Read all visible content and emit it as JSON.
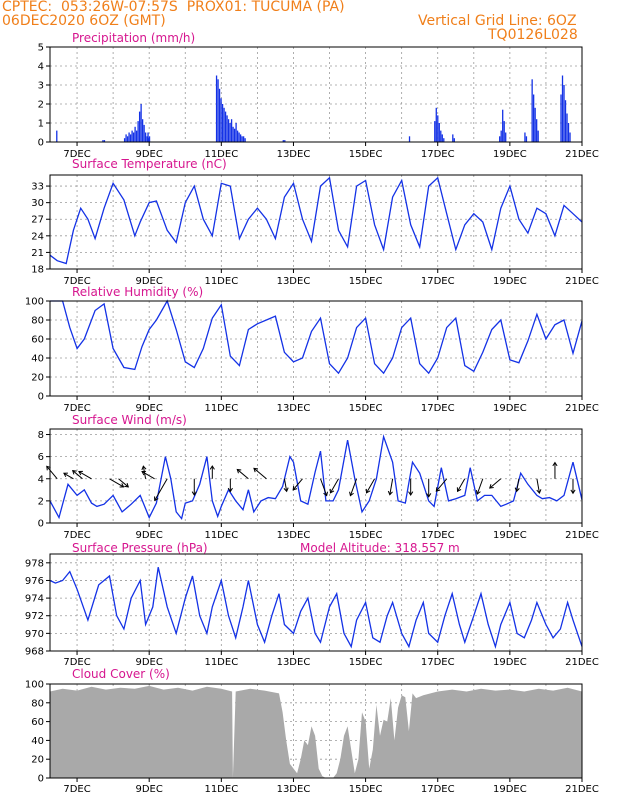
{
  "header": {
    "line1_left": "CPTEC:  053:26W-07:57S  PROX01: TUCUMA (PA)",
    "line2_left": "06DEC2020 6OZ (GMT)",
    "line2_right": "Vertical Grid Line: 6OZ",
    "line3_right": "TQ0126L028"
  },
  "colors": {
    "header": "#f07f1a",
    "title": "#d6168f",
    "series": "#1432e6",
    "cloud": "#a9a9a9",
    "grid": "#9a9a9a",
    "arrow": "#000000"
  },
  "chart_data": [
    {
      "type": "bar",
      "title": "Precipitation (mm/h)",
      "ylim": [
        0,
        5
      ],
      "yticks": [
        "0",
        "1",
        "2",
        "3",
        "4",
        "5"
      ],
      "x_start_day": 6.25,
      "x_end_day": 21.0,
      "x_tick_days": [
        7,
        9,
        11,
        13,
        15,
        17,
        19,
        21
      ],
      "x_tick_labels": [
        "7DEC",
        "9DEC",
        "11DEC",
        "13DEC",
        "15DEC",
        "17DEC",
        "19DEC",
        "21DEC"
      ],
      "bursts": [
        {
          "day": 6.42,
          "values": [
            0.6
          ]
        },
        {
          "day": 7.7,
          "values": [
            0.1,
            0.1
          ]
        },
        {
          "day": 8.3,
          "values": [
            0.2,
            0.4,
            0.3,
            0.5,
            0.4,
            0.6,
            0.5,
            0.8,
            0.6,
            1.1,
            1.6,
            2.0,
            1.2,
            0.9,
            0.5,
            0.3,
            0.2
          ]
        },
        {
          "day": 8.95,
          "values": [
            0.5,
            0.3
          ]
        },
        {
          "day": 10.85,
          "values": [
            3.5,
            3.3,
            2.8,
            2.3,
            2.0,
            1.8,
            1.6,
            1.4,
            1.2,
            1.0,
            1.2,
            0.8,
            0.7,
            1.0,
            0.6,
            0.5,
            0.4,
            0.3,
            0.3,
            0.2
          ]
        },
        {
          "day": 12.7,
          "values": [
            0.1,
            0.1
          ]
        },
        {
          "day": 16.2,
          "values": [
            0.3
          ]
        },
        {
          "day": 16.9,
          "values": [
            1.1,
            1.8,
            1.4,
            1.0,
            0.6,
            0.4,
            0.2
          ]
        },
        {
          "day": 17.4,
          "values": [
            0.4,
            0.2
          ]
        },
        {
          "day": 18.7,
          "values": [
            0.3,
            0.6,
            1.7,
            1.1,
            0.5
          ]
        },
        {
          "day": 19.4,
          "values": [
            0.5,
            0.3
          ]
        },
        {
          "day": 19.6,
          "values": [
            3.3,
            2.5,
            1.8,
            1.2,
            0.6
          ]
        },
        {
          "day": 20.4,
          "values": [
            2.5,
            3.5,
            3.0,
            2.2,
            1.5,
            1.0,
            0.5
          ]
        }
      ]
    },
    {
      "type": "line",
      "title": "Surface Temperature (nC)",
      "ylim": [
        18,
        35
      ],
      "yticks": [
        "18",
        "21",
        "24",
        "27",
        "30",
        "33"
      ],
      "ytick_values": [
        18,
        21,
        24,
        27,
        30,
        33
      ],
      "x_tick_days": [
        7,
        9,
        11,
        13,
        15,
        17,
        19,
        21
      ],
      "x_tick_labels": [
        "7DEC",
        "9DEC",
        "11DEC",
        "13DEC",
        "15DEC",
        "17DEC",
        "19DEC",
        "21DEC"
      ],
      "x": [
        6.25,
        6.45,
        6.7,
        6.9,
        7.1,
        7.3,
        7.5,
        7.75,
        8.0,
        8.3,
        8.6,
        8.75,
        9.0,
        9.2,
        9.5,
        9.75,
        10.0,
        10.25,
        10.5,
        10.75,
        11.0,
        11.25,
        11.5,
        11.75,
        12.0,
        12.25,
        12.5,
        12.75,
        13.0,
        13.25,
        13.5,
        13.75,
        14.0,
        14.25,
        14.5,
        14.75,
        15.0,
        15.25,
        15.5,
        15.75,
        16.0,
        16.25,
        16.5,
        16.75,
        17.0,
        17.25,
        17.5,
        17.75,
        18.0,
        18.25,
        18.5,
        18.75,
        19.0,
        19.25,
        19.5,
        19.75,
        20.0,
        20.25,
        20.5,
        20.75,
        21.0
      ],
      "y": [
        20.5,
        19.5,
        19.0,
        25.0,
        29.0,
        27.0,
        23.5,
        29.0,
        33.5,
        30.5,
        24.0,
        26.5,
        30.0,
        30.3,
        25.0,
        22.8,
        30.0,
        33.0,
        27.0,
        24.0,
        33.5,
        33.0,
        23.5,
        27.0,
        29.0,
        27.0,
        23.5,
        31.0,
        33.5,
        27.0,
        23.0,
        33.0,
        34.5,
        25.0,
        22.0,
        33.0,
        34.0,
        26.0,
        21.5,
        31.0,
        34.0,
        26.0,
        22.0,
        33.0,
        34.5,
        28.0,
        21.5,
        26.0,
        28.0,
        26.5,
        21.5,
        29.0,
        33.0,
        27.0,
        24.5,
        29.0,
        28.0,
        24.0,
        29.5,
        28.0,
        26.5
      ]
    },
    {
      "type": "line",
      "title": "Relative Humidity (%)",
      "ylim": [
        0,
        100
      ],
      "yticks": [
        "0",
        "20",
        "40",
        "60",
        "80",
        "100"
      ],
      "ytick_values": [
        0,
        20,
        40,
        60,
        80,
        100
      ],
      "x_tick_days": [
        7,
        9,
        11,
        13,
        15,
        17,
        19,
        21
      ],
      "x_tick_labels": [
        "7DEC",
        "9DEC",
        "11DEC",
        "13DEC",
        "15DEC",
        "17DEC",
        "19DEC",
        "21DEC"
      ],
      "x": [
        6.25,
        6.6,
        6.8,
        7.0,
        7.2,
        7.5,
        7.75,
        8.0,
        8.3,
        8.6,
        8.8,
        9.0,
        9.2,
        9.5,
        9.75,
        10.0,
        10.25,
        10.5,
        10.75,
        11.0,
        11.25,
        11.5,
        11.75,
        12.0,
        12.25,
        12.5,
        12.75,
        13.0,
        13.25,
        13.5,
        13.75,
        14.0,
        14.25,
        14.5,
        14.75,
        15.0,
        15.25,
        15.5,
        15.75,
        16.0,
        16.25,
        16.5,
        16.75,
        17.0,
        17.25,
        17.5,
        17.75,
        18.0,
        18.25,
        18.5,
        18.75,
        19.0,
        19.25,
        19.5,
        19.75,
        20.0,
        20.25,
        20.5,
        20.75,
        21.0
      ],
      "y": [
        100,
        100,
        72,
        50,
        60,
        90,
        97,
        50,
        30,
        28,
        52,
        70,
        80,
        100,
        70,
        36,
        30,
        50,
        82,
        96,
        42,
        32,
        70,
        76,
        80,
        84,
        46,
        36,
        40,
        68,
        82,
        34,
        24,
        40,
        72,
        82,
        34,
        24,
        40,
        72,
        82,
        34,
        24,
        40,
        72,
        82,
        32,
        26,
        46,
        70,
        80,
        38,
        35,
        58,
        86,
        60,
        75,
        80,
        45,
        79
      ]
    },
    {
      "type": "line",
      "title": "Surface Wind (m/s)",
      "ylim": [
        0,
        8.5
      ],
      "yticks": [
        "0",
        "2",
        "4",
        "6",
        "8"
      ],
      "ytick_values": [
        0,
        2,
        4,
        6,
        8
      ],
      "x_tick_days": [
        7,
        9,
        11,
        13,
        15,
        17,
        19,
        21
      ],
      "x_tick_labels": [
        "7DEC",
        "9DEC",
        "11DEC",
        "13DEC",
        "15DEC",
        "17DEC",
        "19DEC",
        "21DEC"
      ],
      "x": [
        6.25,
        6.5,
        6.75,
        7.0,
        7.2,
        7.4,
        7.55,
        7.75,
        8.0,
        8.25,
        8.5,
        8.75,
        9.0,
        9.2,
        9.45,
        9.6,
        9.75,
        9.9,
        10.0,
        10.2,
        10.4,
        10.6,
        10.75,
        10.9,
        11.0,
        11.2,
        11.4,
        11.6,
        11.75,
        11.9,
        12.1,
        12.3,
        12.5,
        12.7,
        12.9,
        13.0,
        13.2,
        13.4,
        13.6,
        13.75,
        13.9,
        14.1,
        14.25,
        14.5,
        14.7,
        14.9,
        15.1,
        15.3,
        15.5,
        15.75,
        15.9,
        16.1,
        16.3,
        16.5,
        16.75,
        16.9,
        17.1,
        17.3,
        17.5,
        17.75,
        17.9,
        18.1,
        18.3,
        18.5,
        18.75,
        18.9,
        19.1,
        19.3,
        19.5,
        19.75,
        19.9,
        20.1,
        20.3,
        20.5,
        20.75,
        21.0
      ],
      "y": [
        2.0,
        0.5,
        3.5,
        2.5,
        3.0,
        1.8,
        1.5,
        1.7,
        2.5,
        1.0,
        1.7,
        2.5,
        0.5,
        1.8,
        6.0,
        4.0,
        1.0,
        0.4,
        1.8,
        2.0,
        3.5,
        6.0,
        2.0,
        0.6,
        1.5,
        3.0,
        2.0,
        1.2,
        3.0,
        1.0,
        2.0,
        2.3,
        2.2,
        3.3,
        6.0,
        5.5,
        2.0,
        1.7,
        4.6,
        6.5,
        2.0,
        2.0,
        3.0,
        7.5,
        4.0,
        1.0,
        2.0,
        4.0,
        7.8,
        5.5,
        2.0,
        1.8,
        5.5,
        4.5,
        2.0,
        1.5,
        5.0,
        2.0,
        2.2,
        2.5,
        5.0,
        2.0,
        2.5,
        2.5,
        1.5,
        1.7,
        2.0,
        4.5,
        3.5,
        2.5,
        2.2,
        2.3,
        2.0,
        2.5,
        5.5,
        2.1
      ],
      "arrow_days": [
        6.45,
        6.9,
        7.15,
        7.4,
        7.9,
        8.15,
        8.9,
        9.15,
        9.5,
        10.25,
        10.75,
        11.25,
        11.75,
        12.25,
        12.75,
        13.25,
        13.75,
        14.25,
        14.75,
        15.25,
        15.75,
        16.25,
        16.75,
        17.25,
        17.75,
        18.25,
        18.75,
        19.25,
        19.75,
        20.25,
        20.75
      ],
      "arrow_speed": [
        3.5,
        2.0,
        2.5,
        3.0,
        3.5,
        2.5,
        2.5,
        3.0,
        6.0,
        3.5,
        2.5,
        2.5,
        3.0,
        3.5,
        2.5,
        3.0,
        4.0,
        3.5,
        4.0,
        3.5,
        3.5,
        3.5,
        4.0,
        3.5,
        3.0,
        3.5,
        3.0,
        2.5,
        3.0,
        3.5,
        3.0
      ],
      "arrow_dir_deg": [
        320,
        300,
        310,
        300,
        120,
        130,
        350,
        300,
        210,
        180,
        0,
        180,
        310,
        310,
        170,
        220,
        160,
        210,
        200,
        210,
        190,
        180,
        180,
        220,
        210,
        200,
        230,
        190,
        170,
        0,
        180
      ]
    },
    {
      "type": "line",
      "title": "Surface Pressure (hPa)",
      "annotation": "Model Altitude: 318.557 m",
      "ylim": [
        968,
        979
      ],
      "yticks": [
        "968",
        "970",
        "972",
        "974",
        "976",
        "978"
      ],
      "ytick_values": [
        968,
        970,
        972,
        974,
        976,
        978
      ],
      "x_tick_days": [
        7,
        9,
        11,
        13,
        15,
        17,
        19,
        21
      ],
      "x_tick_labels": [
        "7DEC",
        "9DEC",
        "11DEC",
        "13DEC",
        "15DEC",
        "17DEC",
        "19DEC",
        "21DEC"
      ],
      "x": [
        6.25,
        6.4,
        6.6,
        6.8,
        7.0,
        7.3,
        7.6,
        7.9,
        8.1,
        8.3,
        8.5,
        8.75,
        8.9,
        9.1,
        9.25,
        9.5,
        9.75,
        10.0,
        10.2,
        10.4,
        10.6,
        10.75,
        11.0,
        11.2,
        11.4,
        11.6,
        11.75,
        12.0,
        12.2,
        12.4,
        12.6,
        12.75,
        13.0,
        13.2,
        13.4,
        13.6,
        13.75,
        14.0,
        14.2,
        14.4,
        14.6,
        14.75,
        15.0,
        15.2,
        15.4,
        15.6,
        15.75,
        16.0,
        16.2,
        16.4,
        16.6,
        16.75,
        17.0,
        17.2,
        17.4,
        17.6,
        17.75,
        18.0,
        18.2,
        18.4,
        18.6,
        18.75,
        19.0,
        19.2,
        19.4,
        19.6,
        19.75,
        20.0,
        20.2,
        20.4,
        20.6,
        20.75,
        21.0
      ],
      "y": [
        976.0,
        975.7,
        976.0,
        977.0,
        975.0,
        971.5,
        975.5,
        976.5,
        972.0,
        970.5,
        974.0,
        976.0,
        971.0,
        973.0,
        977.5,
        973.0,
        970.0,
        974.0,
        976.5,
        972.0,
        970.0,
        973.0,
        976.0,
        972.0,
        969.5,
        973.0,
        976.0,
        971.0,
        969.0,
        972.0,
        974.5,
        971.0,
        970.0,
        972.5,
        974.0,
        970.0,
        969.0,
        973.0,
        974.5,
        970.0,
        968.5,
        971.5,
        973.5,
        969.5,
        969.0,
        972.0,
        973.5,
        970.0,
        968.5,
        971.5,
        973.5,
        970.0,
        969.0,
        972.0,
        974.5,
        971.0,
        969.0,
        972.0,
        974.5,
        971.0,
        968.5,
        971.0,
        973.5,
        970.0,
        969.5,
        971.5,
        973.5,
        971.0,
        969.5,
        970.5,
        973.5,
        971.5,
        968.5
      ]
    },
    {
      "type": "area",
      "title": "Cloud Cover (%)",
      "ylim": [
        0,
        100
      ],
      "yticks": [
        "0",
        "20",
        "40",
        "60",
        "80",
        "100"
      ],
      "ytick_values": [
        0,
        20,
        40,
        60,
        80,
        100
      ],
      "x_tick_days": [
        7,
        9,
        11,
        13,
        15,
        17,
        19,
        21
      ],
      "x_tick_labels": [
        "7DEC",
        "9DEC",
        "11DEC",
        "13DEC",
        "15DEC",
        "17DEC",
        "19DEC",
        "21DEC"
      ],
      "x": [
        6.25,
        6.6,
        7.0,
        7.4,
        7.8,
        8.2,
        8.6,
        9.0,
        9.4,
        9.8,
        10.2,
        10.6,
        11.0,
        11.3,
        11.32,
        11.4,
        11.8,
        12.2,
        12.6,
        12.7,
        12.8,
        12.9,
        13.0,
        13.1,
        13.2,
        13.3,
        13.4,
        13.5,
        13.6,
        13.7,
        13.8,
        13.9,
        14.0,
        14.1,
        14.2,
        14.3,
        14.4,
        14.5,
        14.6,
        14.7,
        14.8,
        14.9,
        15.0,
        15.1,
        15.2,
        15.3,
        15.4,
        15.5,
        15.6,
        15.7,
        15.8,
        15.9,
        16.0,
        16.1,
        16.2,
        16.3,
        16.4,
        16.6,
        17.0,
        17.4,
        17.8,
        18.2,
        18.6,
        19.0,
        19.4,
        19.8,
        20.2,
        20.6,
        21.0
      ],
      "y": [
        92,
        95,
        93,
        97,
        94,
        96,
        95,
        98,
        94,
        96,
        93,
        97,
        95,
        92,
        0,
        92,
        95,
        93,
        90,
        70,
        40,
        15,
        10,
        5,
        20,
        40,
        35,
        55,
        45,
        10,
        2,
        0,
        0,
        0,
        5,
        20,
        45,
        55,
        30,
        5,
        20,
        70,
        60,
        10,
        30,
        78,
        45,
        62,
        60,
        85,
        40,
        75,
        88,
        86,
        50,
        90,
        85,
        88,
        92,
        94,
        92,
        95,
        93,
        94,
        92,
        95,
        93,
        96,
        92
      ]
    }
  ]
}
